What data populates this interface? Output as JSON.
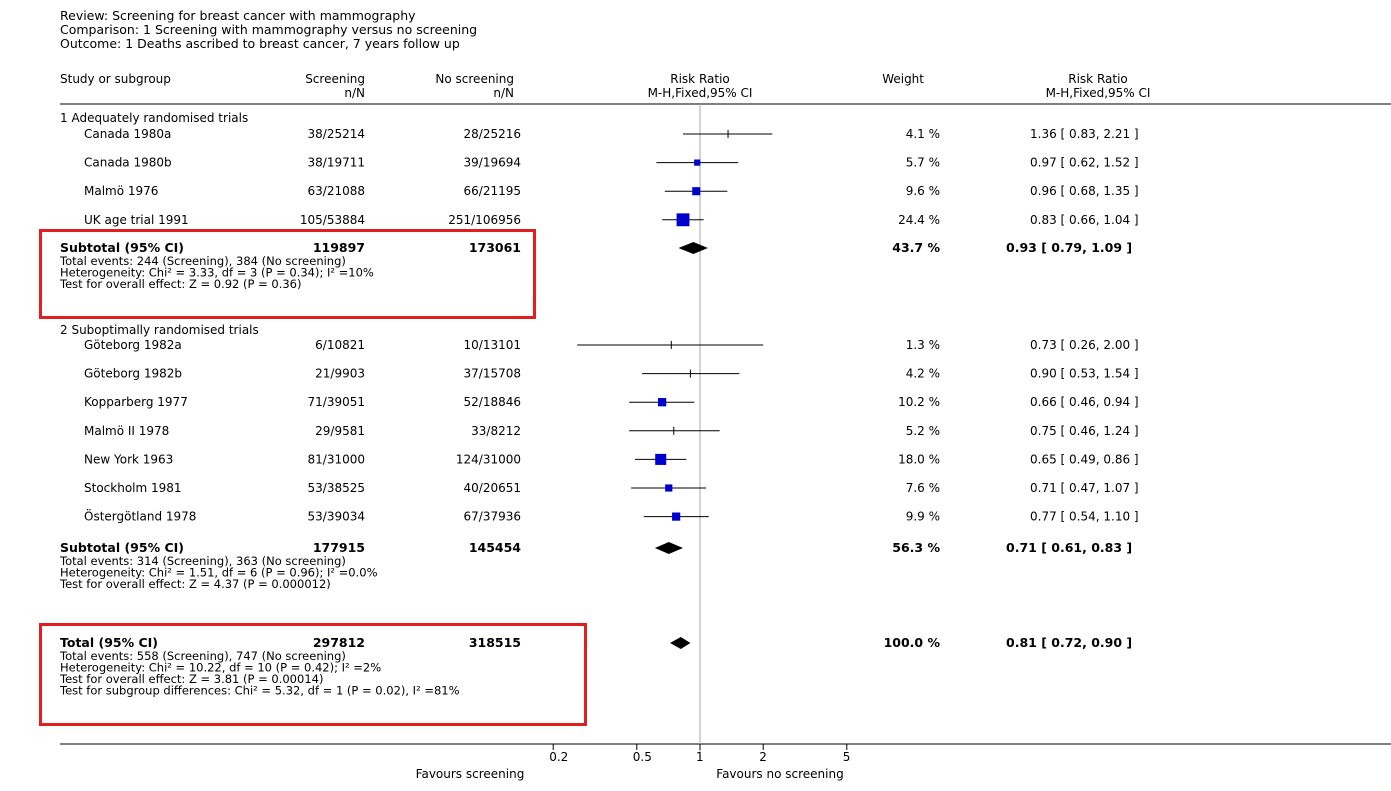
{
  "meta": {
    "review": "Review:  Screening for breast cancer with mammography",
    "comparison": "Comparison:  1 Screening with mammography versus no screening",
    "outcome": "Outcome:  1 Deaths ascribed to breast cancer, 7 years follow up"
  },
  "columns": {
    "study": "Study or subgroup",
    "screening": "Screening",
    "screening_sub": "n/N",
    "no_screening": "No screening",
    "no_screening_sub": "n/N",
    "rr_plot": "Risk Ratio",
    "rr_plot_sub": "M-H,Fixed,95% CI",
    "weight": "Weight",
    "rr_text": "Risk Ratio",
    "rr_text_sub": "M-H,Fixed,95% CI"
  },
  "chart_data": {
    "type": "forest",
    "scale": "log",
    "xlim": [
      0.2,
      5
    ],
    "ticks": [
      {
        "value": 0.2,
        "label": "0.2"
      },
      {
        "value": 0.5,
        "label": "0.5"
      },
      {
        "value": 1,
        "label": "1"
      },
      {
        "value": 2,
        "label": "2"
      },
      {
        "value": 5,
        "label": "5"
      }
    ],
    "reference_line": 1,
    "left_label": "Favours screening",
    "right_label": "Favours no screening",
    "groups": [
      {
        "title": "1 Adequately randomised trials",
        "studies": [
          {
            "name": "Canada 1980a",
            "screening": "38/25214",
            "control": "28/25216",
            "weight": "4.1 %",
            "rr_text": "1.36 [ 0.83, 2.21 ]",
            "rr": 1.36,
            "lo": 0.83,
            "hi": 2.21,
            "w": 4.1
          },
          {
            "name": "Canada 1980b",
            "screening": "38/19711",
            "control": "39/19694",
            "weight": "5.7 %",
            "rr_text": "0.97 [ 0.62, 1.52 ]",
            "rr": 0.97,
            "lo": 0.62,
            "hi": 1.52,
            "w": 5.7
          },
          {
            "name": "Malmö 1976",
            "screening": "63/21088",
            "control": "66/21195",
            "weight": "9.6 %",
            "rr_text": "0.96 [ 0.68, 1.35 ]",
            "rr": 0.96,
            "lo": 0.68,
            "hi": 1.35,
            "w": 9.6
          },
          {
            "name": "UK age trial 1991",
            "screening": "105/53884",
            "control": "251/106956",
            "weight": "24.4 %",
            "rr_text": "0.83 [ 0.66, 1.04 ]",
            "rr": 0.83,
            "lo": 0.66,
            "hi": 1.04,
            "w": 24.4
          }
        ],
        "subtotal": {
          "label": "Subtotal (95% CI)",
          "screening": "119897",
          "control": "173061",
          "weight": "43.7 %",
          "rr_text": "0.93 [ 0.79, 1.09 ]",
          "rr": 0.93,
          "lo": 0.79,
          "hi": 1.09,
          "stats": [
            "Total events: 244 (Screening), 384 (No screening)",
            "Heterogeneity: Chi² = 3.33, df = 3 (P = 0.34); I² =10%",
            "Test for overall effect: Z = 0.92 (P = 0.36)"
          ]
        }
      },
      {
        "title": "2 Suboptimally randomised trials",
        "studies": [
          {
            "name": "Göteborg 1982a",
            "screening": "6/10821",
            "control": "10/13101",
            "weight": "1.3 %",
            "rr_text": "0.73 [ 0.26, 2.00 ]",
            "rr": 0.73,
            "lo": 0.26,
            "hi": 2.0,
            "w": 1.3
          },
          {
            "name": "Göteborg 1982b",
            "screening": "21/9903",
            "control": "37/15708",
            "weight": "4.2 %",
            "rr_text": "0.90 [ 0.53, 1.54 ]",
            "rr": 0.9,
            "lo": 0.53,
            "hi": 1.54,
            "w": 4.2
          },
          {
            "name": "Kopparberg 1977",
            "screening": "71/39051",
            "control": "52/18846",
            "weight": "10.2 %",
            "rr_text": "0.66 [ 0.46, 0.94 ]",
            "rr": 0.66,
            "lo": 0.46,
            "hi": 0.94,
            "w": 10.2
          },
          {
            "name": "Malmö II 1978",
            "screening": "29/9581",
            "control": "33/8212",
            "weight": "5.2 %",
            "rr_text": "0.75 [ 0.46, 1.24 ]",
            "rr": 0.75,
            "lo": 0.46,
            "hi": 1.24,
            "w": 5.2
          },
          {
            "name": "New York 1963",
            "screening": "81/31000",
            "control": "124/31000",
            "weight": "18.0 %",
            "rr_text": "0.65 [ 0.49, 0.86 ]",
            "rr": 0.65,
            "lo": 0.49,
            "hi": 0.86,
            "w": 18.0
          },
          {
            "name": "Stockholm 1981",
            "screening": "53/38525",
            "control": "40/20651",
            "weight": "7.6 %",
            "rr_text": "0.71 [ 0.47, 1.07 ]",
            "rr": 0.71,
            "lo": 0.47,
            "hi": 1.07,
            "w": 7.6
          },
          {
            "name": "Östergötland 1978",
            "screening": "53/39034",
            "control": "67/37936",
            "weight": "9.9 %",
            "rr_text": "0.77 [ 0.54, 1.10 ]",
            "rr": 0.77,
            "lo": 0.54,
            "hi": 1.1,
            "w": 9.9
          }
        ],
        "subtotal": {
          "label": "Subtotal (95% CI)",
          "screening": "177915",
          "control": "145454",
          "weight": "56.3 %",
          "rr_text": "0.71 [ 0.61, 0.83 ]",
          "rr": 0.71,
          "lo": 0.61,
          "hi": 0.83,
          "stats": [
            "Total events: 314 (Screening), 363 (No screening)",
            "Heterogeneity: Chi² = 1.51, df = 6 (P = 0.96); I² =0.0%",
            "Test for overall effect: Z = 4.37 (P = 0.000012)"
          ]
        }
      }
    ],
    "total": {
      "label": "Total (95% CI)",
      "screening": "297812",
      "control": "318515",
      "weight": "100.0 %",
      "rr_text": "0.81 [ 0.72, 0.90 ]",
      "rr": 0.81,
      "lo": 0.72,
      "hi": 0.9,
      "stats": [
        "Total events: 558 (Screening), 747 (No screening)",
        "Heterogeneity: Chi² = 10.22, df = 10 (P = 0.42); I² =2%",
        "Test for overall effect: Z = 3.81 (P = 0.00014)",
        "Test for subgroup differences: Chi² = 5.32, df = 1 (P = 0.02), I² =81%"
      ]
    },
    "highlights": [
      "subtotal-1",
      "total"
    ],
    "colors": {
      "marker": "#0000cc",
      "diamond": "#000000",
      "line": "#000000",
      "reference": "#a8a8a8",
      "highlight": "#e02020"
    }
  }
}
